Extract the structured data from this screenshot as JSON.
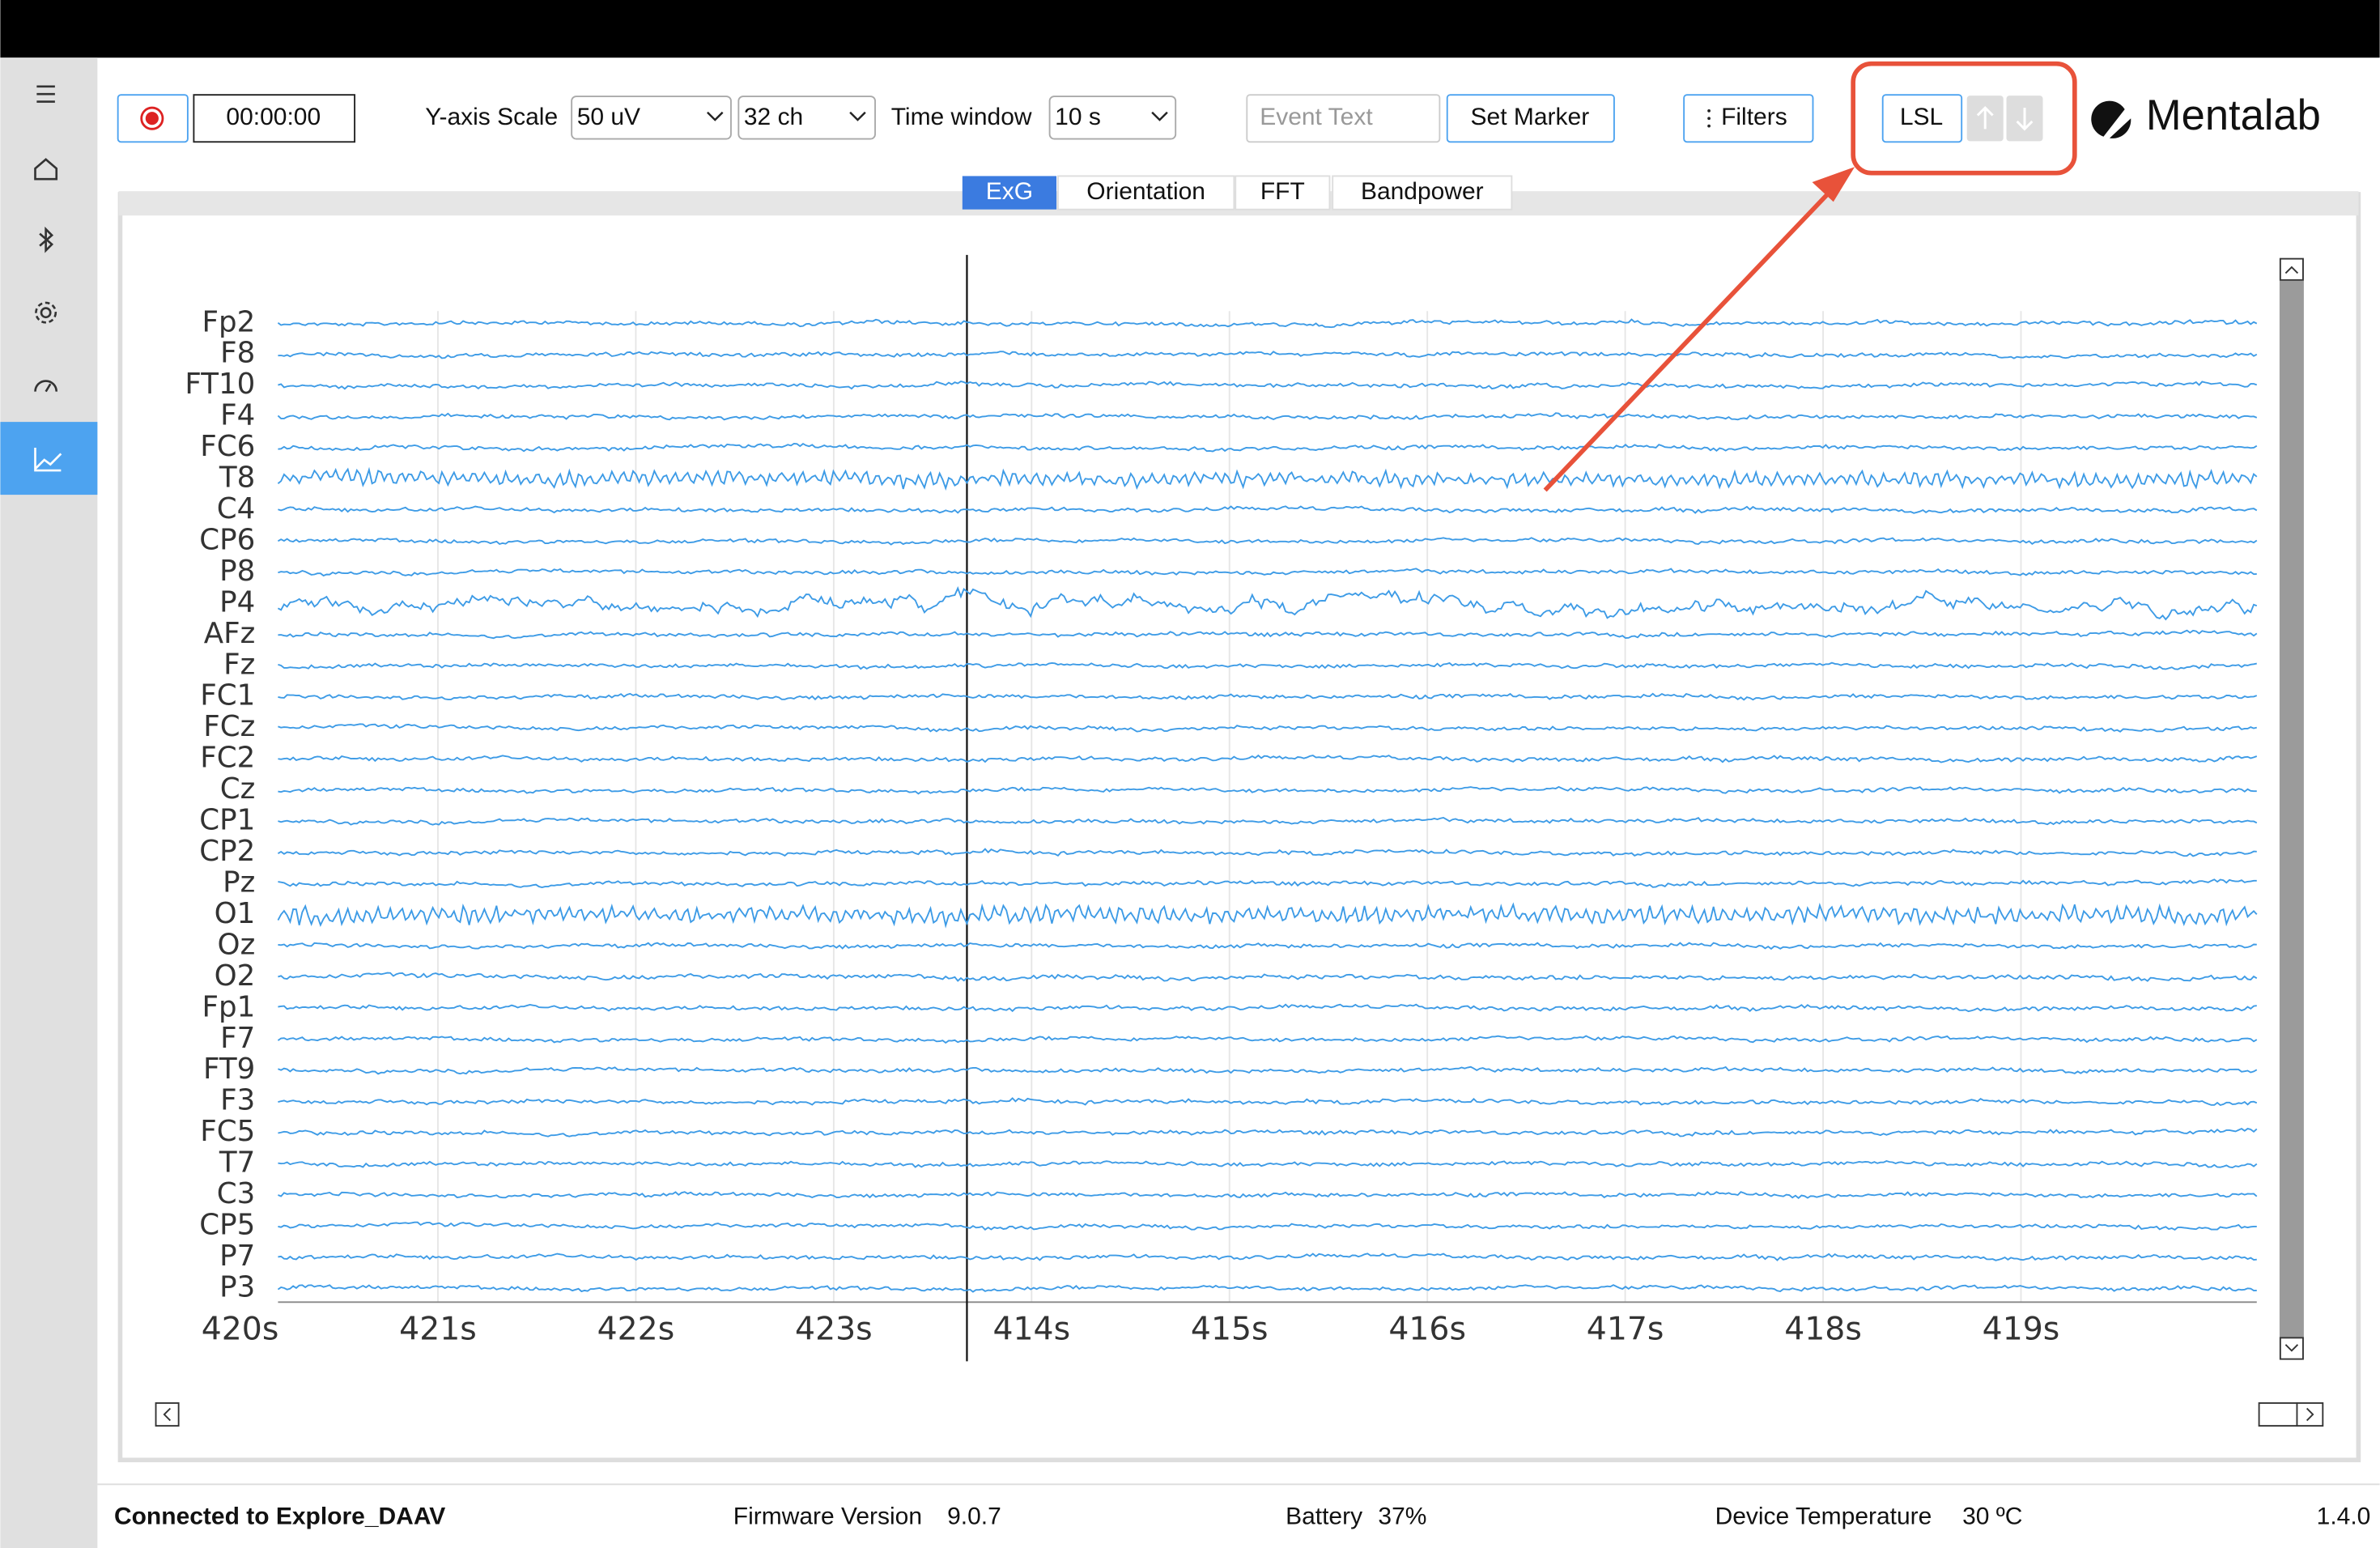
{
  "toolbar": {
    "timer": "00:00:00",
    "y_scale_label": "Y-axis Scale",
    "y_scale": "50 uV",
    "channels": "32 ch",
    "time_window_label": "Time window",
    "time_window": "10 s",
    "event_placeholder": "Event Text",
    "set_marker": "Set Marker",
    "filters": "Filters",
    "lsl": "LSL",
    "brand": "Mentalab"
  },
  "tabs": [
    "ExG",
    "Orientation",
    "FFT",
    "Bandpower"
  ],
  "plot": {
    "channels": [
      "Fp2",
      "F8",
      "FT10",
      "F4",
      "FC6",
      "T8",
      "C4",
      "CP6",
      "P8",
      "P4",
      "AFz",
      "Fz",
      "FC1",
      "FCz",
      "FC2",
      "Cz",
      "CP1",
      "CP2",
      "Pz",
      "O1",
      "Oz",
      "O2",
      "Fp1",
      "F7",
      "FT9",
      "F3",
      "FC5",
      "T7",
      "C3",
      "CP5",
      "P7",
      "P3"
    ],
    "time_labels": [
      "420s",
      "421s",
      "422s",
      "423s",
      "414s",
      "415s",
      "416s",
      "417s",
      "418s",
      "419s"
    ]
  },
  "status": {
    "connection": "Connected to Explore_DAAV",
    "firmware_label": "Firmware Version",
    "firmware": "9.0.7",
    "battery_label": "Battery",
    "battery": "37%",
    "temperature_label": "Device Temperature",
    "temperature": "30 ºC",
    "version": "1.4.0"
  }
}
